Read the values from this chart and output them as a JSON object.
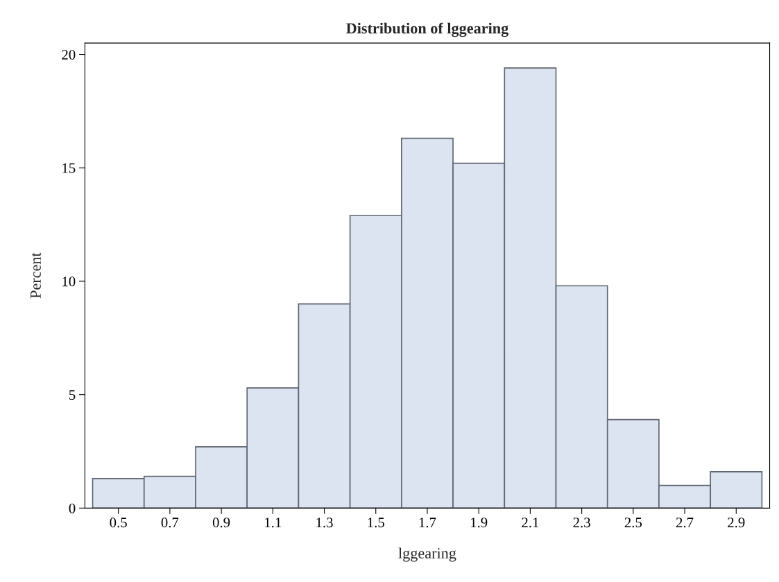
{
  "chart_data": {
    "type": "histogram",
    "title": "Distribution of lggearing",
    "xlabel": "lggearing",
    "ylabel": "Percent",
    "bins": [
      0.4,
      0.6,
      0.8,
      1.0,
      1.2,
      1.4,
      1.6,
      1.8,
      2.0,
      2.2,
      2.4,
      2.6,
      2.8,
      3.0
    ],
    "values": [
      1.3,
      1.4,
      2.7,
      5.3,
      9.0,
      12.9,
      16.3,
      15.2,
      19.4,
      9.8,
      3.9,
      1.0,
      1.6
    ],
    "color": "#dce4f1",
    "xlim": [
      0.37,
      3.03
    ],
    "ylim": [
      0,
      20.5
    ],
    "xticks": [
      0.5,
      0.7,
      0.9,
      1.1,
      1.3,
      1.5,
      1.7,
      1.9,
      2.1,
      2.3,
      2.5,
      2.7,
      2.9
    ],
    "yticks": [
      0,
      5,
      10,
      15,
      20
    ],
    "grid": false
  }
}
